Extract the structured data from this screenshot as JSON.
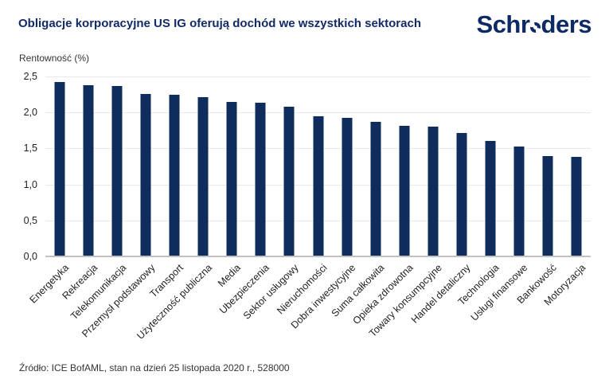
{
  "header": {
    "title": "Obligacje korporacyjne US IG oferują dochód we wszystkich sektorach",
    "logo_pre": "Schr",
    "logo_post": "ders",
    "brand_color": "#0e2a66"
  },
  "footer": {
    "source": "Źródło: ICE BofAML, stan na dzień 25 listopada 2020 r., 528000"
  },
  "chart_data": {
    "type": "bar",
    "title": "Obligacje korporacyjne US IG oferują dochód we wszystkich sektorach",
    "ylabel": "Rentowność (%)",
    "xlabel": "",
    "ylim": [
      0,
      2.5
    ],
    "ytick_labels": [
      "2,5",
      "2,0",
      "1,5",
      "1,0",
      "0,5",
      "0,0"
    ],
    "grid": true,
    "legend": "none",
    "bar_color": "#0e2c5c",
    "categories": [
      "Energetyka",
      "Rekreacja",
      "Telekomunikacja",
      "Przemysł podstawowy",
      "Transport",
      "Użyteczność publiczna",
      "Media",
      "Ubezpieczenia",
      "Sektor usługowy",
      "Nieruchomości",
      "Dobra inwestycyjne",
      "Suma całkowita",
      "Opieka zdrowotna",
      "Towary konsumpcyjne",
      "Handel detaliczny",
      "Technologia",
      "Usługi finansowe",
      "Bankowość",
      "Motoryzacja"
    ],
    "values": [
      2.42,
      2.38,
      2.37,
      2.26,
      2.25,
      2.21,
      2.15,
      2.13,
      2.08,
      1.95,
      1.93,
      1.87,
      1.82,
      1.8,
      1.71,
      1.6,
      1.53,
      1.39,
      1.38
    ],
    "source": "Źródło: ICE BofAML, stan na dzień 25 listopada 2020 r., 528000"
  }
}
